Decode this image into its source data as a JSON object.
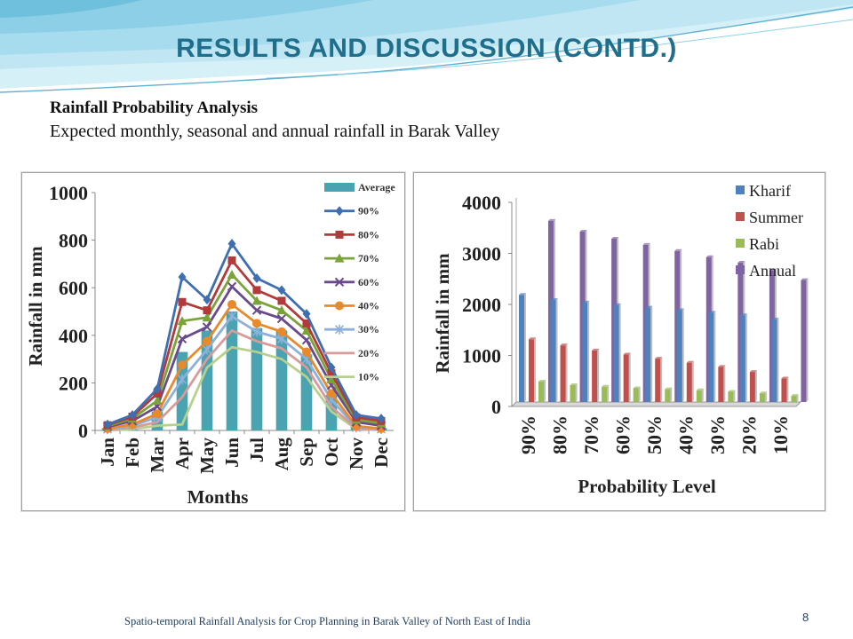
{
  "slide": {
    "title": "RESULTS AND DISCUSSION (CONTD.)",
    "subtitle_bold": "Rainfall Probability Analysis",
    "subtitle": "Expected monthly, seasonal and annual rainfall in Barak Valley",
    "footer": "Spatio-temporal Rainfall Analysis for Crop Planning in Barak Valley of North East of India",
    "page_number": "8"
  },
  "colors": {
    "title": "#1f6e8c",
    "wave_light": "#bfe6f2",
    "wave_dark": "#5fb3d1"
  },
  "chart_data": [
    {
      "type": "bar",
      "xlabel": "Months",
      "ylabel": "Rainfall in mm",
      "ylim": [
        0,
        1000
      ],
      "yticks": [
        0,
        200,
        400,
        600,
        800,
        1000
      ],
      "grid": false,
      "legend": "right",
      "categories": [
        "Jan",
        "Feb",
        "Mar",
        "Apr",
        "May",
        "Jun",
        "Jul",
        "Aug",
        "Sep",
        "Oct",
        "Nov",
        "Dec"
      ],
      "series": [
        {
          "name": "Average",
          "kind": "bar",
          "color": "#4aa3b0",
          "values": [
            10,
            35,
            80,
            330,
            420,
            500,
            430,
            420,
            320,
            150,
            20,
            10
          ]
        },
        {
          "name": "90%",
          "kind": "line",
          "color": "#3f6fb0",
          "marker": "diamond",
          "values": [
            25,
            65,
            175,
            645,
            550,
            785,
            640,
            590,
            490,
            265,
            65,
            50
          ]
        },
        {
          "name": "80%",
          "kind": "line",
          "color": "#b33a3a",
          "marker": "square",
          "values": [
            22,
            58,
            155,
            540,
            505,
            715,
            590,
            545,
            450,
            240,
            55,
            40
          ]
        },
        {
          "name": "70%",
          "kind": "line",
          "color": "#7aa33a",
          "marker": "triangle",
          "values": [
            18,
            50,
            125,
            460,
            475,
            655,
            545,
            505,
            420,
            215,
            45,
            30
          ]
        },
        {
          "name": "60%",
          "kind": "line",
          "color": "#6a4a8a",
          "marker": "x",
          "values": [
            15,
            40,
            100,
            385,
            435,
            605,
            505,
            470,
            380,
            190,
            35,
            20
          ]
        },
        {
          "name": "40%",
          "kind": "line",
          "color": "#e8892a",
          "marker": "circle",
          "values": [
            8,
            25,
            70,
            275,
            375,
            530,
            450,
            415,
            330,
            155,
            18,
            8
          ]
        },
        {
          "name": "30%",
          "kind": "line",
          "color": "#8fb0d8",
          "marker": "star",
          "values": [
            5,
            20,
            55,
            215,
            340,
            480,
            415,
            385,
            300,
            130,
            12,
            5
          ]
        },
        {
          "name": "20%",
          "kind": "line",
          "color": "#d99a9a",
          "marker": "none",
          "values": [
            3,
            12,
            35,
            140,
            300,
            420,
            375,
            345,
            265,
            100,
            8,
            3
          ]
        },
        {
          "name": "10%",
          "kind": "line",
          "color": "#b8cf8f",
          "marker": "none",
          "values": [
            0,
            5,
            20,
            25,
            265,
            350,
            330,
            300,
            225,
            80,
            5,
            2
          ]
        }
      ]
    },
    {
      "type": "bar",
      "xlabel": "Probability Level",
      "ylabel": "Rainfall in mm",
      "ylim": [
        0,
        4000
      ],
      "yticks": [
        0,
        1000,
        2000,
        3000,
        4000
      ],
      "grid": false,
      "legend": "top-right",
      "categories": [
        "90%",
        "80%",
        "70%",
        "60%",
        "50%",
        "40%",
        "30%",
        "20%",
        "10%"
      ],
      "series": [
        {
          "name": "Kharif",
          "color": "#4f81bd",
          "values": [
            2100,
            2000,
            1950,
            1900,
            1850,
            1800,
            1750,
            1700,
            1620
          ]
        },
        {
          "name": "Summer",
          "color": "#c0504d",
          "values": [
            1230,
            1110,
            1010,
            930,
            850,
            770,
            690,
            590,
            460
          ]
        },
        {
          "name": "Rabi",
          "color": "#9bbb59",
          "values": [
            400,
            330,
            300,
            270,
            250,
            230,
            200,
            170,
            120
          ]
        },
        {
          "name": "Annual",
          "color": "#8064a2",
          "values": [
            3550,
            3340,
            3200,
            3080,
            2960,
            2840,
            2730,
            2580,
            2390
          ]
        }
      ]
    }
  ]
}
